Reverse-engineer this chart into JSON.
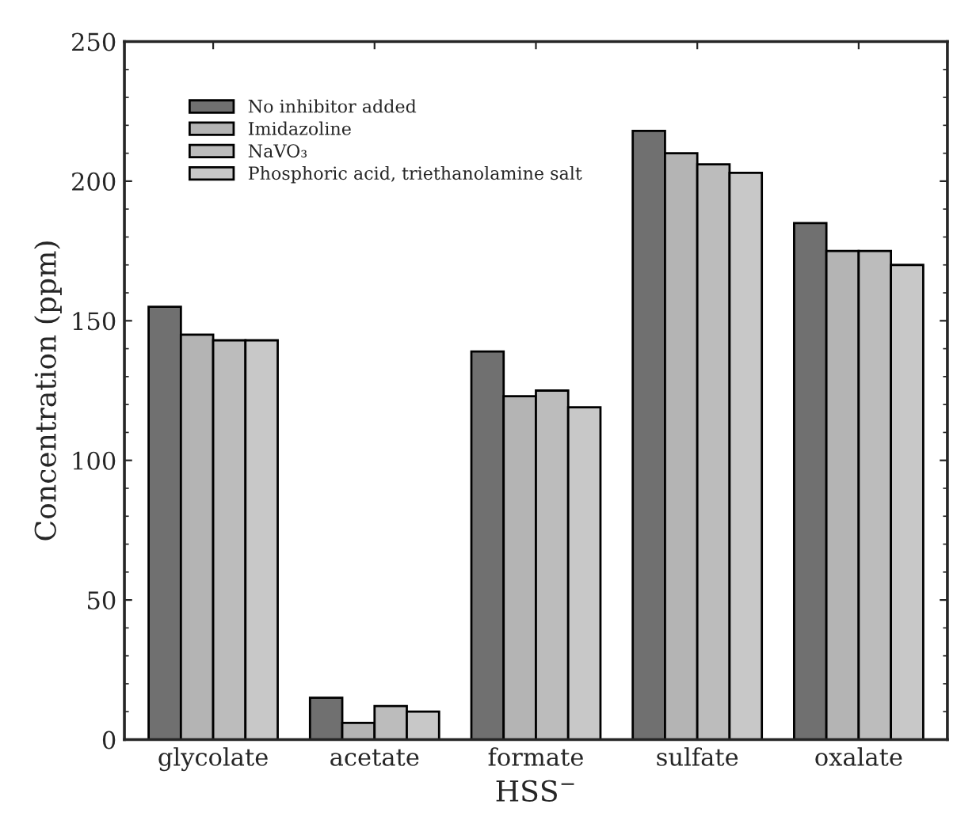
{
  "chart_data": {
    "type": "bar",
    "xlabel": "HSS$^{−}$",
    "ylabel": "Concentration (ppm)",
    "categories": [
      "glycolate",
      "acetate",
      "formate",
      "sulfate",
      "oxalate"
    ],
    "series": [
      {
        "name": "No inhibitor added",
        "color": "#707070",
        "values": [
          155,
          15,
          139,
          218,
          185
        ]
      },
      {
        "name": "Imidazoline",
        "color": "#b4b4b4",
        "values": [
          145,
          6,
          123,
          210,
          175
        ]
      },
      {
        "name": "NaVO₃",
        "color": "#bcbcbc",
        "values": [
          143,
          12,
          125,
          206,
          175
        ]
      },
      {
        "name": "Phosphoric acid, triethanolamine salt",
        "color": "#c8c8c8",
        "values": [
          143,
          10,
          119,
          203,
          170
        ]
      }
    ],
    "ylim": [
      0,
      250
    ],
    "yticks": [
      0,
      50,
      100,
      150,
      200,
      250
    ],
    "grid": false,
    "legend": "top left"
  }
}
